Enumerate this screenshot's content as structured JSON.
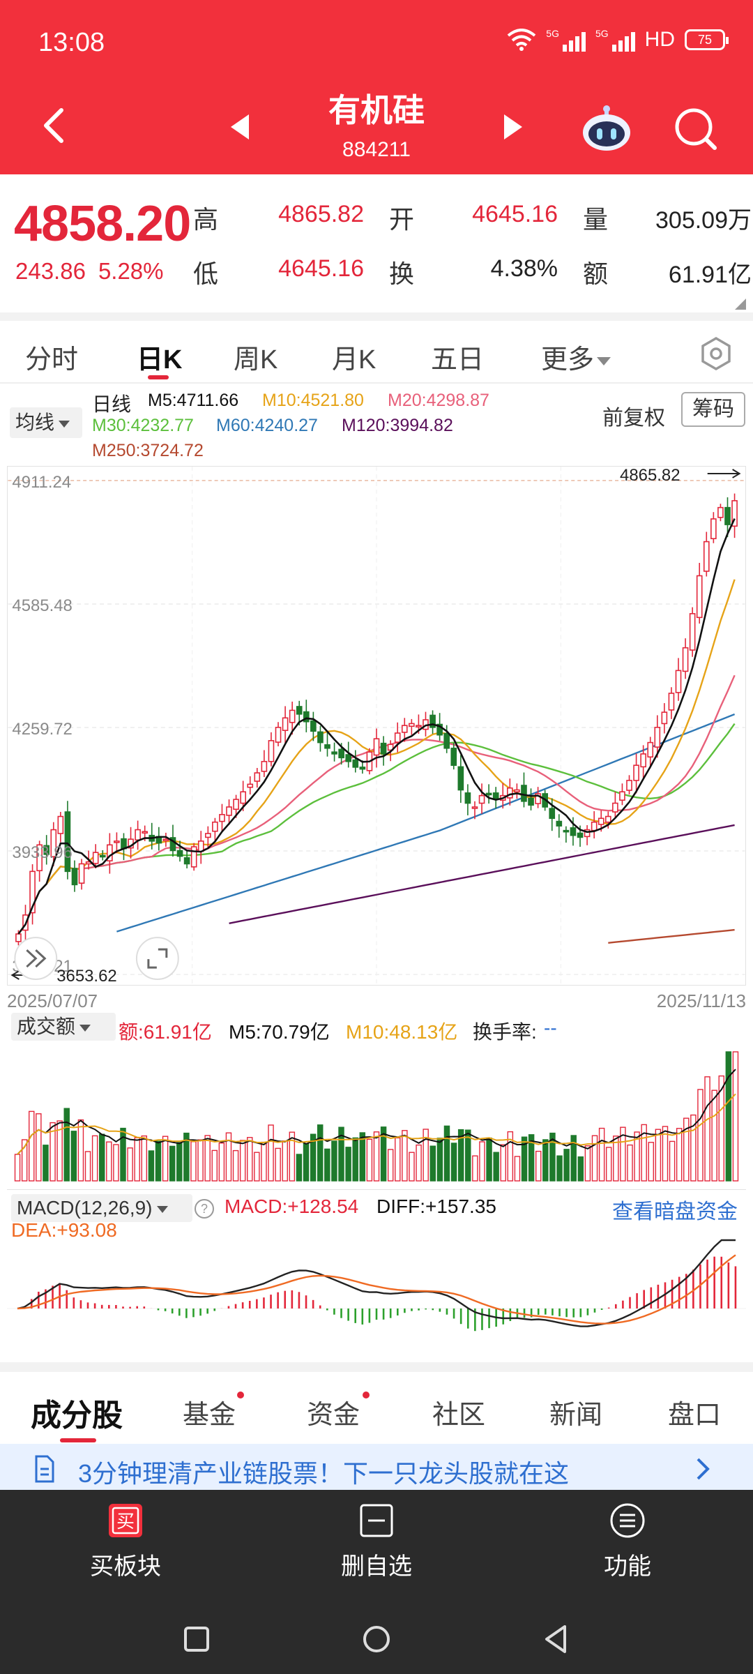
{
  "status_bar": {
    "time": "13:08",
    "net1": "5G",
    "net2": "5G",
    "hd": "HD",
    "battery": "75"
  },
  "header": {
    "title": "有机硅",
    "code": "884211"
  },
  "quote": {
    "price": "4858.20",
    "change": "243.86",
    "change_pct": "5.28%",
    "high_label": "高",
    "high": "4865.82",
    "open_label": "开",
    "open": "4645.16",
    "volume_label": "量",
    "volume": "305.09万",
    "low_label": "低",
    "low": "4645.16",
    "turnover_label": "换",
    "turnover": "4.38%",
    "amount_label": "额",
    "amount": "61.91亿"
  },
  "k_tabs": [
    "分时",
    "日K",
    "周K",
    "月K",
    "五日",
    "更多"
  ],
  "ma_legend": {
    "select": "均线",
    "period": "日线",
    "m5": "M5:4711.66",
    "m10": "M10:4521.80",
    "m20": "M20:4298.87",
    "m30": "M30:4232.77",
    "m60": "M60:4240.27",
    "m120": "M120:3994.82",
    "m250": "M250:3724.72",
    "fq": "前复权",
    "chips": "筹码"
  },
  "colors": {
    "up": "#e3263a",
    "down": "#1e7a2c",
    "m5": "#111111",
    "m10": "#e6a317",
    "m20": "#e8607a",
    "m30": "#5cbf3c",
    "m60": "#2f78b5",
    "m120": "#5a0f5a",
    "m250": "#b5492f"
  },
  "main_chart": {
    "y_ticks": [
      "4911.24",
      "4585.48",
      "4259.72",
      "3933.96",
      "3608.21"
    ],
    "high_marker": "4865.82",
    "low_marker": "3653.62",
    "date_start": "2025/07/07",
    "date_end": "2025/11/13"
  },
  "volume": {
    "select": "成交额",
    "amount": "额:61.91亿",
    "m5": "M5:70.79亿",
    "m10": "M10:48.13亿",
    "turnover_label": "换手率:",
    "turnover_value": "--"
  },
  "macd": {
    "select": "MACD(12,26,9)",
    "macd": "MACD:+128.54",
    "diff": "DIFF:+157.35",
    "dea": "DEA:+93.08",
    "link": "查看暗盘资金"
  },
  "chart_data": {
    "type": "candlestick",
    "x_start": "2025/07/07",
    "x_end": "2025/11/13",
    "ylim": [
      3608.21,
      4911.24
    ],
    "closes": [
      3715,
      3765,
      3880,
      3950,
      3925,
      3990,
      4025,
      3880,
      3845,
      3900,
      3905,
      3930,
      3920,
      3950,
      3960,
      3940,
      3965,
      3990,
      3985,
      3960,
      3955,
      3965,
      3935,
      3920,
      3900,
      3945,
      3960,
      3980,
      4010,
      4030,
      4050,
      4070,
      4090,
      4110,
      4140,
      4170,
      4225,
      4260,
      4285,
      4305,
      4295,
      4275,
      4250,
      4220,
      4205,
      4190,
      4180,
      4170,
      4155,
      4150,
      4195,
      4230,
      4190,
      4215,
      4245,
      4265,
      4270,
      4265,
      4280,
      4260,
      4240,
      4205,
      4160,
      4095,
      4060,
      4050,
      4080,
      4085,
      4070,
      4080,
      4100,
      4095,
      4065,
      4055,
      4085,
      4050,
      4020,
      4000,
      3985,
      3975,
      3970,
      3990,
      4010,
      4020,
      4025,
      4060,
      4090,
      4120,
      4160,
      4190,
      4220,
      4260,
      4300,
      4350,
      4410,
      4470,
      4560,
      4660,
      4750,
      4810,
      4840,
      4795,
      4858
    ],
    "volume_amount_series": "bars, 亿",
    "series": []
  },
  "bottom_tabs": [
    "成分股",
    "基金",
    "资金",
    "社区",
    "新闻",
    "盘口"
  ],
  "banner": {
    "text": "3分钟理清产业链股票！下一只龙头股就在这"
  },
  "actions": {
    "buy": "买板块",
    "buy_icon_text": "买",
    "remove": "删自选",
    "more": "功能"
  }
}
